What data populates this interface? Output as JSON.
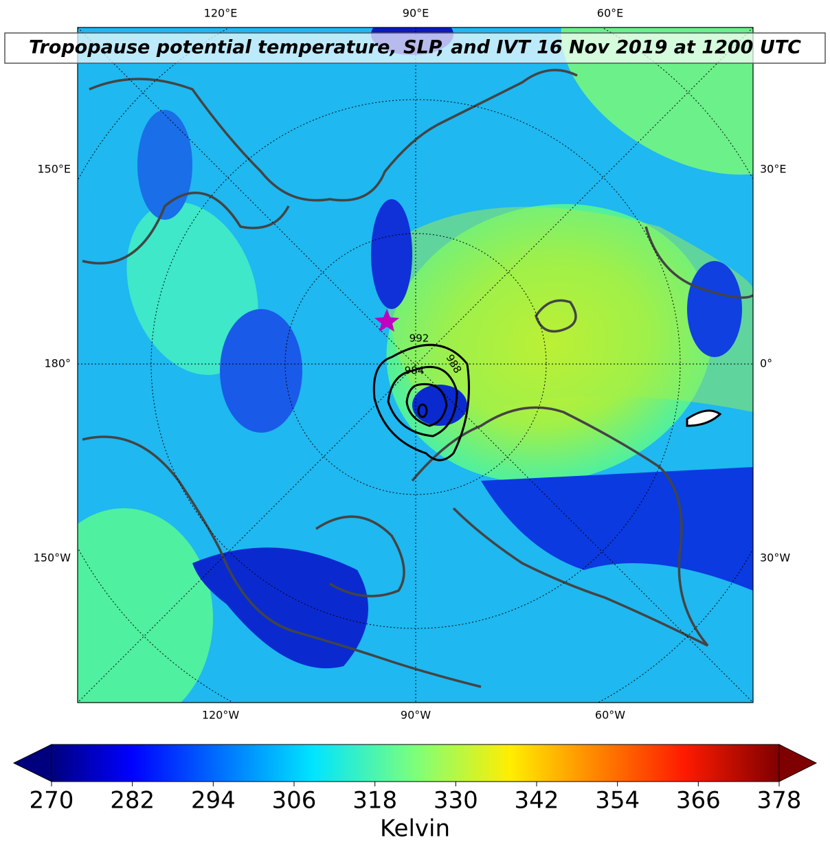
{
  "title": "Tropopause potential temperature, SLP, and IVT 16 Nov 2019 at 1200 UTC",
  "map": {
    "top_labels": [
      "120°E",
      "90°E",
      "60°E"
    ],
    "bottom_labels": [
      "120°W",
      "90°W",
      "60°W"
    ],
    "left_labels": [
      "150°E",
      "180°",
      "150°W"
    ],
    "right_labels": [
      "30°E",
      "0°",
      "30°W"
    ],
    "contour_labels": [
      992,
      988,
      984
    ]
  },
  "colorbar": {
    "label": "Kelvin",
    "lim": [
      270,
      378
    ],
    "ticks": [
      270,
      282,
      294,
      306,
      318,
      330,
      342,
      354,
      366,
      378
    ]
  }
}
